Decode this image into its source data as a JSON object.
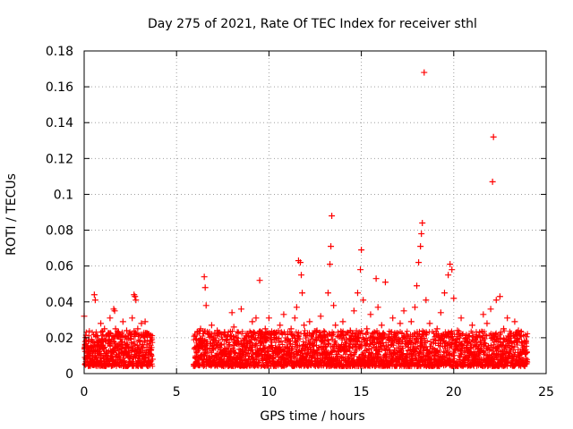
{
  "chart_data": {
    "type": "scatter",
    "title": "Day 275 of 2021, Rate Of TEC Index for receiver sthl",
    "xlabel": "GPS time / hours",
    "ylabel": "ROTI / TECUs",
    "xlim": [
      0,
      25
    ],
    "ylim": [
      0,
      0.18
    ],
    "xticks": [
      0,
      5,
      10,
      15,
      20,
      25
    ],
    "xtick_labels": [
      "0",
      "5",
      "10",
      "15",
      "20",
      "25"
    ],
    "yticks": [
      0,
      0.02,
      0.04,
      0.06,
      0.08,
      0.1,
      0.12,
      0.14,
      0.16,
      0.18
    ],
    "ytick_labels": [
      "0",
      "0.02",
      "0.04",
      "0.06",
      "0.08",
      "0.1",
      "0.12",
      "0.14",
      "0.16",
      "0.18"
    ],
    "grid": true,
    "marker": "+",
    "color": "#ff0000",
    "data_gap_hours": [
      3.7,
      5.9
    ],
    "series": [
      {
        "name": "ROTI",
        "points": [
          [
            0.0,
            0.032
          ],
          [
            0.05,
            0.009
          ],
          [
            0.1,
            0.008
          ],
          [
            0.15,
            0.012
          ],
          [
            0.2,
            0.015
          ],
          [
            0.3,
            0.011
          ],
          [
            0.4,
            0.019
          ],
          [
            0.5,
            0.013
          ],
          [
            0.55,
            0.044
          ],
          [
            0.6,
            0.041
          ],
          [
            0.7,
            0.021
          ],
          [
            0.8,
            0.016
          ],
          [
            0.9,
            0.028
          ],
          [
            1.0,
            0.018
          ],
          [
            1.1,
            0.025
          ],
          [
            1.2,
            0.012
          ],
          [
            1.3,
            0.022
          ],
          [
            1.4,
            0.031
          ],
          [
            1.5,
            0.019
          ],
          [
            1.6,
            0.036
          ],
          [
            1.65,
            0.035
          ],
          [
            1.7,
            0.025
          ],
          [
            1.8,
            0.015
          ],
          [
            1.9,
            0.021
          ],
          [
            2.0,
            0.012
          ],
          [
            2.1,
            0.029
          ],
          [
            2.2,
            0.017
          ],
          [
            2.3,
            0.024
          ],
          [
            2.4,
            0.014
          ],
          [
            2.5,
            0.022
          ],
          [
            2.6,
            0.031
          ],
          [
            2.7,
            0.044
          ],
          [
            2.75,
            0.043
          ],
          [
            2.8,
            0.041
          ],
          [
            2.9,
            0.025
          ],
          [
            3.0,
            0.018
          ],
          [
            3.1,
            0.028
          ],
          [
            3.2,
            0.021
          ],
          [
            3.3,
            0.029
          ],
          [
            3.4,
            0.016
          ],
          [
            3.5,
            0.022
          ],
          [
            3.6,
            0.013
          ],
          [
            3.7,
            0.008
          ],
          [
            6.0,
            0.021
          ],
          [
            6.1,
            0.012
          ],
          [
            6.2,
            0.018
          ],
          [
            6.3,
            0.025
          ],
          [
            6.4,
            0.015
          ],
          [
            6.5,
            0.054
          ],
          [
            6.55,
            0.048
          ],
          [
            6.6,
            0.038
          ],
          [
            6.7,
            0.022
          ],
          [
            6.8,
            0.014
          ],
          [
            6.9,
            0.027
          ],
          [
            7.0,
            0.019
          ],
          [
            7.2,
            0.024
          ],
          [
            7.4,
            0.016
          ],
          [
            7.6,
            0.023
          ],
          [
            7.8,
            0.013
          ],
          [
            8.0,
            0.034
          ],
          [
            8.1,
            0.026
          ],
          [
            8.3,
            0.018
          ],
          [
            8.5,
            0.036
          ],
          [
            8.7,
            0.015
          ],
          [
            8.9,
            0.021
          ],
          [
            9.1,
            0.029
          ],
          [
            9.3,
            0.031
          ],
          [
            9.5,
            0.052
          ],
          [
            9.6,
            0.017
          ],
          [
            9.8,
            0.025
          ],
          [
            10.0,
            0.031
          ],
          [
            10.2,
            0.013
          ],
          [
            10.4,
            0.022
          ],
          [
            10.6,
            0.027
          ],
          [
            10.8,
            0.033
          ],
          [
            11.0,
            0.019
          ],
          [
            11.2,
            0.025
          ],
          [
            11.4,
            0.031
          ],
          [
            11.5,
            0.037
          ],
          [
            11.6,
            0.063
          ],
          [
            11.7,
            0.062
          ],
          [
            11.75,
            0.055
          ],
          [
            11.8,
            0.045
          ],
          [
            11.9,
            0.027
          ],
          [
            12.0,
            0.021
          ],
          [
            12.2,
            0.029
          ],
          [
            12.4,
            0.016
          ],
          [
            12.6,
            0.024
          ],
          [
            12.8,
            0.032
          ],
          [
            13.0,
            0.018
          ],
          [
            13.2,
            0.045
          ],
          [
            13.3,
            0.061
          ],
          [
            13.35,
            0.071
          ],
          [
            13.4,
            0.088
          ],
          [
            13.5,
            0.038
          ],
          [
            13.6,
            0.027
          ],
          [
            13.8,
            0.021
          ],
          [
            14.0,
            0.029
          ],
          [
            14.2,
            0.015
          ],
          [
            14.4,
            0.024
          ],
          [
            14.6,
            0.035
          ],
          [
            14.8,
            0.045
          ],
          [
            14.95,
            0.058
          ],
          [
            15.0,
            0.069
          ],
          [
            15.1,
            0.041
          ],
          [
            15.3,
            0.025
          ],
          [
            15.5,
            0.033
          ],
          [
            15.7,
            0.019
          ],
          [
            15.8,
            0.053
          ],
          [
            15.9,
            0.037
          ],
          [
            16.1,
            0.027
          ],
          [
            16.3,
            0.051
          ],
          [
            16.5,
            0.022
          ],
          [
            16.7,
            0.031
          ],
          [
            16.9,
            0.018
          ],
          [
            17.1,
            0.028
          ],
          [
            17.3,
            0.035
          ],
          [
            17.5,
            0.021
          ],
          [
            17.7,
            0.029
          ],
          [
            17.9,
            0.037
          ],
          [
            18.0,
            0.049
          ],
          [
            18.1,
            0.062
          ],
          [
            18.2,
            0.071
          ],
          [
            18.25,
            0.078
          ],
          [
            18.3,
            0.084
          ],
          [
            18.4,
            0.168
          ],
          [
            18.5,
            0.041
          ],
          [
            18.7,
            0.028
          ],
          [
            18.9,
            0.019
          ],
          [
            19.1,
            0.025
          ],
          [
            19.3,
            0.034
          ],
          [
            19.5,
            0.045
          ],
          [
            19.7,
            0.055
          ],
          [
            19.8,
            0.061
          ],
          [
            19.9,
            0.058
          ],
          [
            20.0,
            0.042
          ],
          [
            20.2,
            0.024
          ],
          [
            20.4,
            0.031
          ],
          [
            20.6,
            0.018
          ],
          [
            20.8,
            0.021
          ],
          [
            21.0,
            0.027
          ],
          [
            21.2,
            0.015
          ],
          [
            21.4,
            0.023
          ],
          [
            21.6,
            0.033
          ],
          [
            21.8,
            0.028
          ],
          [
            22.0,
            0.036
          ],
          [
            22.1,
            0.107
          ],
          [
            22.15,
            0.132
          ],
          [
            22.3,
            0.041
          ],
          [
            22.5,
            0.043
          ],
          [
            22.7,
            0.025
          ],
          [
            22.9,
            0.031
          ],
          [
            23.1,
            0.018
          ],
          [
            23.3,
            0.029
          ],
          [
            23.5,
            0.024
          ],
          [
            23.7,
            0.017
          ],
          [
            23.9,
            0.012
          ]
        ]
      }
    ]
  }
}
